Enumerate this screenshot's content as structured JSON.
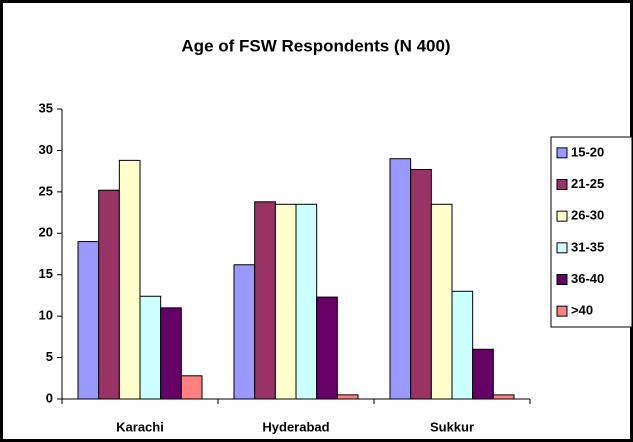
{
  "chart_data": {
    "type": "bar",
    "title": "Age of FSW Respondents (N 400)",
    "categories": [
      "Karachi",
      "Hyderabad",
      "Sukkur"
    ],
    "series": [
      {
        "name": "15-20",
        "color": "#9999ff",
        "values": [
          19,
          16.2,
          29
        ]
      },
      {
        "name": "21-25",
        "color": "#993366",
        "values": [
          25.2,
          23.8,
          27.7
        ]
      },
      {
        "name": "26-30",
        "color": "#ffffcc",
        "values": [
          28.8,
          23.5,
          23.5
        ]
      },
      {
        "name": "31-35",
        "color": "#ccffff",
        "values": [
          12.4,
          23.5,
          13
        ]
      },
      {
        "name": "36-40",
        "color": "#660066",
        "values": [
          11,
          12.3,
          6
        ]
      },
      {
        "name": ">40",
        "color": "#ff8080",
        "values": [
          2.8,
          0.5,
          0.5
        ]
      }
    ],
    "ylim": [
      0,
      35
    ],
    "yticks": [
      0,
      5,
      10,
      15,
      20,
      25,
      30,
      35
    ],
    "legend": "right"
  }
}
